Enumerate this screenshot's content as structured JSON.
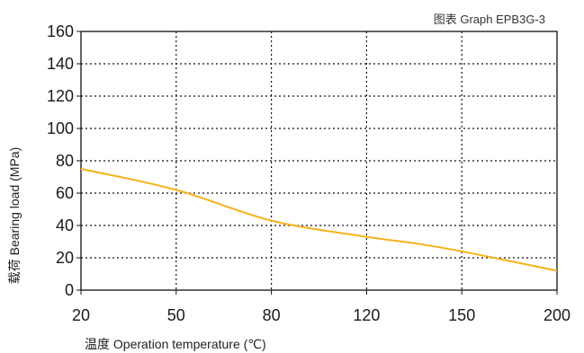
{
  "chart_data": {
    "type": "line",
    "title": "",
    "caption": "图表 Graph EPB3G-3",
    "xlabel": "温度 Operation temperature (℃)",
    "ylabel": "载荷 Bearing load (MPa)",
    "x_tick_labels": [
      "20",
      "50",
      "80",
      "120",
      "150",
      "200"
    ],
    "y_ticks": [
      0,
      20,
      40,
      60,
      80,
      100,
      120,
      140,
      160
    ],
    "ylim": [
      0,
      160
    ],
    "grid": true,
    "series_color": "#f5b21a",
    "series": [
      {
        "points": [
          {
            "x": "20",
            "y": 75
          },
          {
            "x": "50",
            "y": 62
          },
          {
            "x": "80",
            "y": 43
          },
          {
            "x": "120",
            "y": 33
          },
          {
            "x": "135",
            "y": 29
          },
          {
            "x": "150",
            "y": 24
          },
          {
            "x": "200",
            "y": 12
          }
        ]
      }
    ]
  }
}
